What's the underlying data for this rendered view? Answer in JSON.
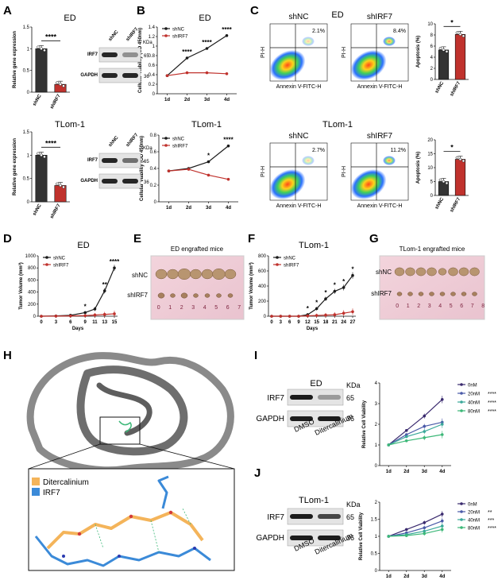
{
  "panel_letters": [
    "A",
    "B",
    "C",
    "D",
    "E",
    "F",
    "G",
    "H",
    "I",
    "J"
  ],
  "titles": {
    "a_top": "ED",
    "a_bot": "TLom-1",
    "b_top": "ED",
    "b_bot": "TLom-1",
    "c_top": "ED",
    "c_bot": "TLom-1",
    "d": "ED",
    "f": "TLom-1",
    "e": "ED engrafted mice",
    "g": "TLom-1 engrafted mice",
    "i": "ED",
    "j": "TLom-1"
  },
  "common": {
    "shNC": "shNC",
    "shIRF7": "shIRF7",
    "kda": "KDa",
    "irf7": "IRF7",
    "gapdh": "GAPDH",
    "kda65": "65",
    "kda36": "36",
    "dmso": "DMSO",
    "ditercalinium": "Ditercalinium",
    "rel_gene": "Relative gene expression",
    "cell_viab": "Cellular Viability (OD 450nm)",
    "apoptosis": "Apoptosis (%)",
    "tumor_vol": "Tumor Volume (mm³)",
    "days": "Days",
    "rel_cell_viab": "Relative Cell Viability",
    "pi_h": "PI-H",
    "annexin": "Annexin V-FITC-H",
    "sig4": "****",
    "sig1": "*",
    "sig2": "**",
    "sig3": "***"
  },
  "legend_dose": [
    "0nM",
    "20nM",
    "40nM",
    "80nM"
  ],
  "legend_h": [
    "Ditercalinium",
    "IRF7"
  ],
  "flow_pct": {
    "c_top_shnc": "2.1%",
    "c_top_shirf7": "8.4%",
    "c_bot_shnc": "2.7%",
    "c_bot_shirf7": "11.2%"
  },
  "colors": {
    "black": "#1a1a1a",
    "red": "#c0322d",
    "purple": "#3a2a6e",
    "blue": "#4a5aa8",
    "teal": "#3aa89a",
    "green": "#3cb878",
    "orange": "#f4b45a",
    "ligandblue": "#3b8ad8"
  },
  "chart_data": [
    {
      "id": "A_top",
      "type": "bar",
      "categories": [
        "shNC",
        "shIRF7"
      ],
      "values": [
        1.0,
        0.18
      ],
      "ylim": [
        0,
        1.5
      ],
      "yticks": [
        0,
        0.5,
        1.0,
        1.5
      ],
      "ylabel": "Relative gene expression",
      "title": "ED"
    },
    {
      "id": "A_bot",
      "type": "bar",
      "categories": [
        "shNC",
        "shIRF7"
      ],
      "values": [
        1.0,
        0.35
      ],
      "ylim": [
        0,
        1.5
      ],
      "yticks": [
        0,
        0.5,
        1.0,
        1.5
      ],
      "ylabel": "Relative gene expression",
      "title": "TLom-1"
    },
    {
      "id": "B_top",
      "type": "line",
      "x": [
        "1d",
        "2d",
        "3d",
        "4d"
      ],
      "ylim": [
        0,
        1.4
      ],
      "yticks": [
        0,
        0.2,
        0.4,
        0.6,
        0.8,
        1.0,
        1.2,
        1.4
      ],
      "ylabel": "Cellular Viability (OD 450nm)",
      "title": "ED",
      "series": [
        {
          "name": "shNC",
          "values": [
            0.38,
            0.75,
            0.95,
            1.22
          ]
        },
        {
          "name": "shIRF7",
          "values": [
            0.38,
            0.44,
            0.44,
            0.42
          ]
        }
      ]
    },
    {
      "id": "B_bot",
      "type": "line",
      "x": [
        "1d",
        "2d",
        "3d",
        "4d"
      ],
      "ylim": [
        0,
        0.8
      ],
      "yticks": [
        0,
        0.2,
        0.4,
        0.6,
        0.8
      ],
      "ylabel": "Cellular Viability (OD 450nm)",
      "title": "TLom-1",
      "series": [
        {
          "name": "shNC",
          "values": [
            0.37,
            0.4,
            0.48,
            0.67
          ]
        },
        {
          "name": "shIRF7",
          "values": [
            0.37,
            0.39,
            0.32,
            0.27
          ]
        }
      ]
    },
    {
      "id": "C_top",
      "type": "bar",
      "categories": [
        "shNC",
        "shIRF7"
      ],
      "values": [
        5.3,
        8.1
      ],
      "ylim": [
        0,
        10
      ],
      "yticks": [
        0,
        2,
        4,
        6,
        8,
        10
      ],
      "ylabel": "Apoptosis (%)"
    },
    {
      "id": "C_bot",
      "type": "bar",
      "categories": [
        "shNC",
        "shIRF7"
      ],
      "values": [
        5.0,
        13.0
      ],
      "ylim": [
        0,
        20
      ],
      "yticks": [
        0,
        5,
        10,
        15,
        20
      ],
      "ylabel": "Apoptosis (%)"
    },
    {
      "id": "D",
      "type": "line",
      "x": [
        0,
        3,
        6,
        9,
        11,
        13,
        15
      ],
      "ylim": [
        0,
        1000
      ],
      "yticks": [
        0,
        200,
        400,
        600,
        800,
        1000
      ],
      "ylabel": "Tumor Volume (mm³)",
      "xlabel": "Days",
      "title": "ED",
      "series": [
        {
          "name": "shNC",
          "values": [
            0,
            5,
            15,
            60,
            120,
            420,
            800
          ]
        },
        {
          "name": "shIRF7",
          "values": [
            0,
            2,
            5,
            10,
            20,
            30,
            40
          ]
        }
      ]
    },
    {
      "id": "F",
      "type": "line",
      "x": [
        0,
        3,
        6,
        9,
        12,
        15,
        18,
        21,
        24,
        27
      ],
      "ylim": [
        0,
        800
      ],
      "yticks": [
        0,
        200,
        400,
        600,
        800
      ],
      "ylabel": "Tumor Volume (mm³)",
      "xlabel": "Days",
      "title": "TLom-1",
      "series": [
        {
          "name": "shNC",
          "values": [
            0,
            0,
            0,
            0,
            20,
            100,
            230,
            330,
            380,
            540
          ]
        },
        {
          "name": "shIRF7",
          "values": [
            0,
            0,
            0,
            0,
            5,
            10,
            15,
            20,
            40,
            60
          ]
        }
      ]
    },
    {
      "id": "I",
      "type": "line",
      "x": [
        "1d",
        "2d",
        "3d",
        "4d"
      ],
      "ylim": [
        0,
        4
      ],
      "yticks": [
        0,
        1,
        2,
        3,
        4
      ],
      "ylabel": "Relative Cell Viability",
      "series": [
        {
          "name": "0nM",
          "values": [
            1.0,
            1.7,
            2.4,
            3.2
          ]
        },
        {
          "name": "20nM",
          "values": [
            1.0,
            1.5,
            1.9,
            2.1
          ]
        },
        {
          "name": "40nM",
          "values": [
            1.0,
            1.4,
            1.65,
            2.0
          ]
        },
        {
          "name": "80nM",
          "values": [
            1.0,
            1.2,
            1.35,
            1.5
          ]
        }
      ]
    },
    {
      "id": "J",
      "type": "line",
      "x": [
        "1d",
        "2d",
        "3d",
        "4d"
      ],
      "ylim": [
        0,
        2
      ],
      "yticks": [
        0,
        0.5,
        1.0,
        1.5,
        2.0
      ],
      "ylabel": "Relative Cell Viability",
      "series": [
        {
          "name": "0nM",
          "values": [
            1.0,
            1.2,
            1.4,
            1.65
          ]
        },
        {
          "name": "20nM",
          "values": [
            1.0,
            1.1,
            1.25,
            1.45
          ]
        },
        {
          "name": "40nM",
          "values": [
            1.0,
            1.05,
            1.15,
            1.3
          ]
        },
        {
          "name": "80nM",
          "values": [
            1.0,
            1.02,
            1.08,
            1.2
          ]
        }
      ]
    }
  ]
}
